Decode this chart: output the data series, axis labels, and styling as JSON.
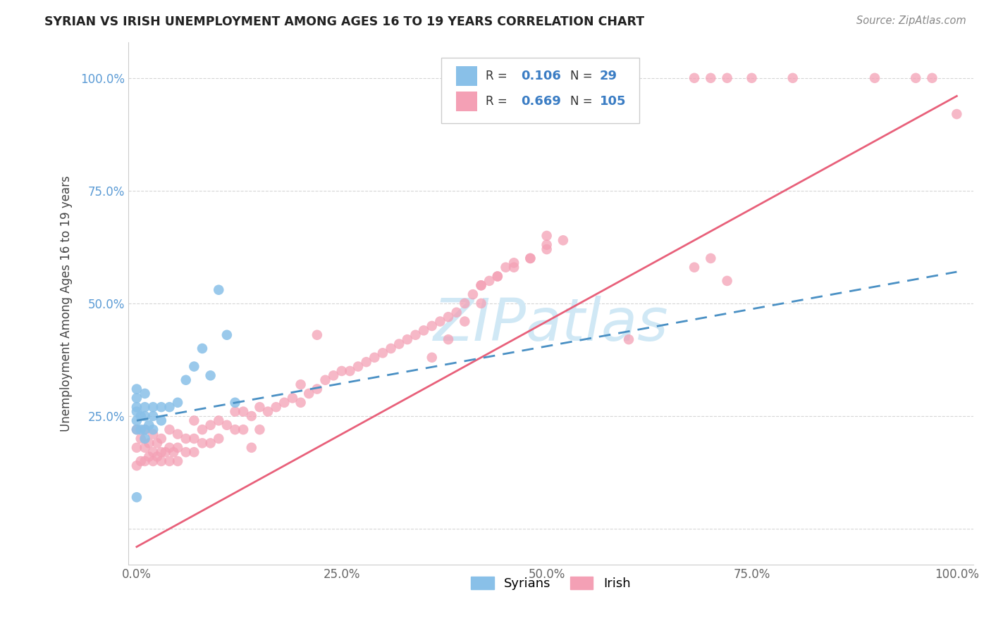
{
  "title": "SYRIAN VS IRISH UNEMPLOYMENT AMONG AGES 16 TO 19 YEARS CORRELATION CHART",
  "source": "Source: ZipAtlas.com",
  "ylabel": "Unemployment Among Ages 16 to 19 years",
  "xlim": [
    -0.01,
    1.02
  ],
  "ylim": [
    -0.08,
    1.08
  ],
  "x_ticks": [
    0.0,
    0.25,
    0.5,
    0.75,
    1.0
  ],
  "x_tick_labels": [
    "0.0%",
    "25.0%",
    "50.0%",
    "75.0%",
    "100.0%"
  ],
  "y_ticks": [
    0.0,
    0.25,
    0.5,
    0.75,
    1.0
  ],
  "y_tick_labels": [
    "",
    "25.0%",
    "50.0%",
    "75.0%",
    "100.0%"
  ],
  "syrian_color": "#89C0E8",
  "irish_color": "#F4A0B5",
  "syrian_line_color": "#4A90C4",
  "irish_line_color": "#E8607A",
  "background_color": "#ffffff",
  "grid_color": "#cccccc",
  "watermark_color": "#D0E8F5",
  "tick_color_y": "#5B9BD5",
  "tick_color_x": "#666666",
  "syrian_x": [
    0.0,
    0.0,
    0.0,
    0.0,
    0.0,
    0.0,
    0.005,
    0.005,
    0.01,
    0.01,
    0.01,
    0.01,
    0.01,
    0.015,
    0.02,
    0.02,
    0.02,
    0.03,
    0.03,
    0.04,
    0.05,
    0.06,
    0.07,
    0.08,
    0.09,
    0.1,
    0.11,
    0.12,
    0.0
  ],
  "syrian_y": [
    0.22,
    0.24,
    0.26,
    0.27,
    0.29,
    0.31,
    0.22,
    0.25,
    0.2,
    0.22,
    0.25,
    0.27,
    0.3,
    0.23,
    0.22,
    0.25,
    0.27,
    0.24,
    0.27,
    0.27,
    0.28,
    0.33,
    0.36,
    0.4,
    0.34,
    0.53,
    0.43,
    0.28,
    0.07
  ],
  "irish_x": [
    0.0,
    0.0,
    0.0,
    0.005,
    0.005,
    0.01,
    0.01,
    0.01,
    0.015,
    0.015,
    0.02,
    0.02,
    0.02,
    0.025,
    0.025,
    0.03,
    0.03,
    0.03,
    0.035,
    0.04,
    0.04,
    0.04,
    0.045,
    0.05,
    0.05,
    0.05,
    0.06,
    0.06,
    0.07,
    0.07,
    0.07,
    0.08,
    0.08,
    0.09,
    0.09,
    0.1,
    0.1,
    0.11,
    0.12,
    0.12,
    0.13,
    0.13,
    0.14,
    0.15,
    0.15,
    0.16,
    0.17,
    0.18,
    0.19,
    0.2,
    0.2,
    0.21,
    0.22,
    0.23,
    0.24,
    0.25,
    0.26,
    0.27,
    0.28,
    0.29,
    0.3,
    0.31,
    0.32,
    0.33,
    0.34,
    0.35,
    0.36,
    0.37,
    0.38,
    0.39,
    0.4,
    0.41,
    0.42,
    0.43,
    0.44,
    0.45,
    0.46,
    0.48,
    0.5,
    0.52,
    0.36,
    0.38,
    0.4,
    0.42,
    0.42,
    0.44,
    0.46,
    0.48,
    0.5,
    0.5,
    0.6,
    0.68,
    0.7,
    0.72,
    0.75,
    0.8,
    0.9,
    0.95,
    0.97,
    1.0,
    0.68,
    0.7,
    0.72,
    0.22,
    0.14
  ],
  "irish_y": [
    0.14,
    0.18,
    0.22,
    0.15,
    0.2,
    0.15,
    0.18,
    0.22,
    0.16,
    0.19,
    0.15,
    0.17,
    0.21,
    0.16,
    0.19,
    0.15,
    0.17,
    0.2,
    0.17,
    0.15,
    0.18,
    0.22,
    0.17,
    0.15,
    0.18,
    0.21,
    0.17,
    0.2,
    0.17,
    0.2,
    0.24,
    0.19,
    0.22,
    0.19,
    0.23,
    0.2,
    0.24,
    0.23,
    0.22,
    0.26,
    0.22,
    0.26,
    0.25,
    0.22,
    0.27,
    0.26,
    0.27,
    0.28,
    0.29,
    0.28,
    0.32,
    0.3,
    0.31,
    0.33,
    0.34,
    0.35,
    0.35,
    0.36,
    0.37,
    0.38,
    0.39,
    0.4,
    0.41,
    0.42,
    0.43,
    0.44,
    0.45,
    0.46,
    0.47,
    0.48,
    0.5,
    0.52,
    0.54,
    0.55,
    0.56,
    0.58,
    0.59,
    0.6,
    0.62,
    0.64,
    0.38,
    0.42,
    0.46,
    0.5,
    0.54,
    0.56,
    0.58,
    0.6,
    0.63,
    0.65,
    0.42,
    1.0,
    1.0,
    1.0,
    1.0,
    1.0,
    1.0,
    1.0,
    1.0,
    0.92,
    0.58,
    0.6,
    0.55,
    0.43,
    0.18
  ],
  "irish_line_x": [
    0.0,
    1.0
  ],
  "irish_line_y": [
    -0.04,
    0.96
  ],
  "syrian_line_x": [
    0.0,
    1.0
  ],
  "syrian_line_y": [
    0.24,
    0.57
  ]
}
